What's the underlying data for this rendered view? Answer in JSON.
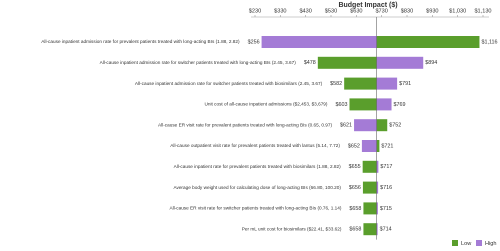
{
  "chart_data": {
    "type": "tornado",
    "title": "Budget Impact ($)",
    "categories": [
      "All-cause inpatient admission rate for prevalent patients treated with long-acting BIs (1.88, 2.82)",
      "All-cause inpatient admission rate for switcher patients treated with long-acting BIs (2.45, 3.67)",
      "All-cause inpatient admission rate for switcher patients treated with biosimilars (2.45, 3.67)",
      "Unit cost of all-cause inpatient admissions ($2,453, $3,679)",
      "All-cause ER visit rate for prevalent patients treated with long-acting BIs (0.65, 0.97)",
      "All-cause outpatient visit rate for prevalent patients treated with lantus (5.14, 7.72)",
      "All-cause inpatient rate for prevalent patients treated with biosimilars (1.88, 2.82)",
      "Average body weight used for calculating dose of long-acting BIs (66.80, 100.20)",
      "All-cause ER visit rate for switcher patients treated with long-acting BIs (0.76, 1.14)",
      "Per mL unit cost for biosimilars ($22.41, $33.62)"
    ],
    "series": [
      {
        "name": "Low",
        "color": "#5a9e2c",
        "values": [
          1116,
          478,
          582,
          603,
          752,
          721,
          655,
          656,
          658,
          658
        ],
        "value_labels": [
          "$1,116",
          "$478",
          "$582",
          "$603",
          "$752",
          "$721",
          "$655",
          "$656",
          "$658",
          "$658"
        ]
      },
      {
        "name": "High",
        "color": "#a47bd6",
        "values": [
          256,
          894,
          791,
          769,
          621,
          652,
          717,
          716,
          715,
          714
        ],
        "value_labels": [
          "$256",
          "$894",
          "$791",
          "$769",
          "$621",
          "$652",
          "$717",
          "$716",
          "$715",
          "$714"
        ]
      }
    ],
    "baseline": 710,
    "xlim": [
      230,
      1130
    ],
    "xticks": [
      {
        "value": 230,
        "label": "$230"
      },
      {
        "value": 330,
        "label": "$330"
      },
      {
        "value": 430,
        "label": "$430"
      },
      {
        "value": 530,
        "label": "$530"
      },
      {
        "value": 630,
        "label": "$630"
      },
      {
        "value": 730,
        "label": "$730"
      },
      {
        "value": 830,
        "label": "$830"
      },
      {
        "value": 930,
        "label": "$930"
      },
      {
        "value": 1030,
        "label": "$1,030"
      },
      {
        "value": 1130,
        "label": "$1,130"
      }
    ],
    "legend": "bottom-right"
  }
}
